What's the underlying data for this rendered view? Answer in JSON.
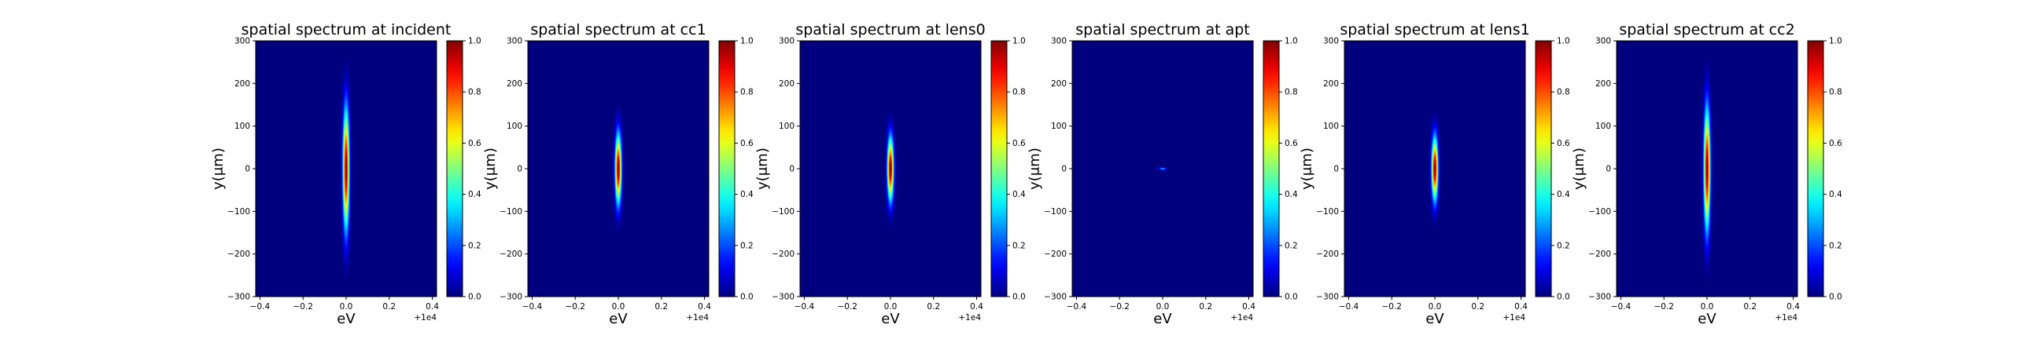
{
  "figure": {
    "colormap": "jet",
    "background_color": "#00007f"
  },
  "chart_data": [
    {
      "type": "heatmap",
      "title": "spatial spectrum at incident",
      "xlabel": "eV",
      "ylabel": "y(μm)",
      "x_offset_label": "+1e4",
      "xlim": [
        -0.42,
        0.42
      ],
      "ylim": [
        -300,
        300
      ],
      "xticks": [
        "−0.4",
        "−0.2",
        "0.0",
        "0.2",
        "0.4"
      ],
      "yticks": [
        "−300",
        "−200",
        "−100",
        "0",
        "100",
        "200",
        "300"
      ],
      "colorbar": {
        "range": [
          0.0,
          1.0
        ],
        "ticks": [
          "0.0",
          "0.2",
          "0.4",
          "0.6",
          "0.8",
          "1.0"
        ]
      },
      "spot": {
        "center_eV": 0.0,
        "center_um": 0,
        "sigma_eV": 0.01,
        "sigma_um": 95,
        "peak": 1.0
      }
    },
    {
      "type": "heatmap",
      "title": "spatial spectrum at cc1",
      "xlabel": "eV",
      "ylabel": "y(μm)",
      "x_offset_label": "+1e4",
      "xlim": [
        -0.42,
        0.42
      ],
      "ylim": [
        -300,
        300
      ],
      "xticks": [
        "−0.4",
        "−0.2",
        "0.0",
        "0.2",
        "0.4"
      ],
      "yticks": [
        "−300",
        "−200",
        "−100",
        "0",
        "100",
        "200",
        "300"
      ],
      "colorbar": {
        "range": [
          0.0,
          1.0
        ],
        "ticks": [
          "0.0",
          "0.2",
          "0.4",
          "0.6",
          "0.8",
          "1.0"
        ]
      },
      "spot": {
        "center_eV": 0.0,
        "center_um": 0,
        "sigma_eV": 0.01,
        "sigma_um": 55,
        "peak": 1.0
      }
    },
    {
      "type": "heatmap",
      "title": "spatial spectrum at lens0",
      "xlabel": "eV",
      "ylabel": "y(μm)",
      "x_offset_label": "+1e4",
      "xlim": [
        -0.42,
        0.42
      ],
      "ylim": [
        -300,
        300
      ],
      "xticks": [
        "−0.4",
        "−0.2",
        "0.0",
        "0.2",
        "0.4"
      ],
      "yticks": [
        "−300",
        "−200",
        "−100",
        "0",
        "100",
        "200",
        "300"
      ],
      "colorbar": {
        "range": [
          0.0,
          1.0
        ],
        "ticks": [
          "0.0",
          "0.2",
          "0.4",
          "0.6",
          "0.8",
          "1.0"
        ]
      },
      "spot": {
        "center_eV": 0.0,
        "center_um": 0,
        "sigma_eV": 0.01,
        "sigma_um": 50,
        "peak": 1.0
      }
    },
    {
      "type": "heatmap",
      "title": "spatial spectrum at apt",
      "xlabel": "eV",
      "ylabel": "y(μm)",
      "x_offset_label": "+1e4",
      "xlim": [
        -0.42,
        0.42
      ],
      "ylim": [
        -300,
        300
      ],
      "xticks": [
        "−0.4",
        "−0.2",
        "0.0",
        "0.2",
        "0.4"
      ],
      "yticks": [
        "−300",
        "−200",
        "−100",
        "0",
        "100",
        "200",
        "300"
      ],
      "colorbar": {
        "range": [
          0.0,
          1.0
        ],
        "ticks": [
          "0.0",
          "0.2",
          "0.4",
          "0.6",
          "0.8",
          "1.0"
        ]
      },
      "spot": {
        "center_eV": 0.0,
        "center_um": 0,
        "sigma_eV": 0.012,
        "sigma_um": 2,
        "peak": 0.3
      }
    },
    {
      "type": "heatmap",
      "title": "spatial spectrum at lens1",
      "xlabel": "eV",
      "ylabel": "y(μm)",
      "x_offset_label": "+1e4",
      "xlim": [
        -0.42,
        0.42
      ],
      "ylim": [
        -300,
        300
      ],
      "xticks": [
        "−0.4",
        "−0.2",
        "0.0",
        "0.2",
        "0.4"
      ],
      "yticks": [
        "−300",
        "−200",
        "−100",
        "0",
        "100",
        "200",
        "300"
      ],
      "colorbar": {
        "range": [
          0.0,
          1.0
        ],
        "ticks": [
          "0.0",
          "0.2",
          "0.4",
          "0.6",
          "0.8",
          "1.0"
        ]
      },
      "spot": {
        "center_eV": 0.0,
        "center_um": 0,
        "sigma_eV": 0.01,
        "sigma_um": 50,
        "peak": 1.0
      }
    },
    {
      "type": "heatmap",
      "title": "spatial spectrum at cc2",
      "xlabel": "eV",
      "ylabel": "y(μm)",
      "x_offset_label": "+1e4",
      "xlim": [
        -0.42,
        0.42
      ],
      "ylim": [
        -300,
        300
      ],
      "xticks": [
        "−0.4",
        "−0.2",
        "0.0",
        "0.2",
        "0.4"
      ],
      "yticks": [
        "−300",
        "−200",
        "−100",
        "0",
        "100",
        "200",
        "300"
      ],
      "colorbar": {
        "range": [
          0.0,
          1.0
        ],
        "ticks": [
          "0.0",
          "0.2",
          "0.4",
          "0.6",
          "0.8",
          "1.0"
        ]
      },
      "spot": {
        "center_eV": 0.0,
        "center_um": 0,
        "sigma_eV": 0.01,
        "sigma_um": 95,
        "peak": 1.0
      }
    }
  ]
}
